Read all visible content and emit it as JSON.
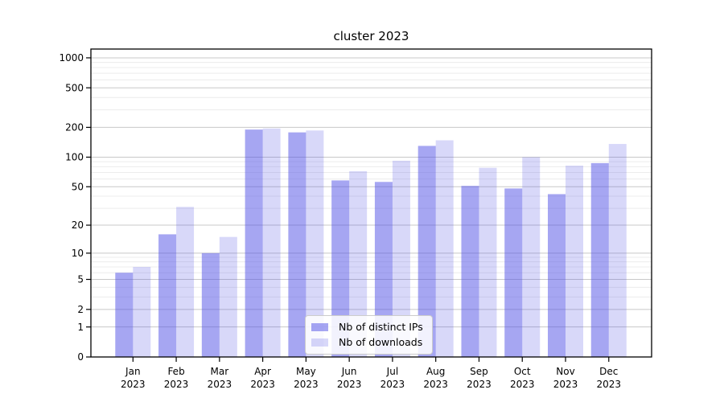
{
  "chart_data": {
    "type": "bar",
    "title": "cluster 2023",
    "xlabel": "",
    "ylabel": "",
    "categories": [
      "Jan 2023",
      "Feb 2023",
      "Mar 2023",
      "Apr 2023",
      "May 2023",
      "Jun 2023",
      "Jul 2023",
      "Aug 2023",
      "Sep 2023",
      "Oct 2023",
      "Nov 2023",
      "Dec 2023"
    ],
    "series": [
      {
        "name": "Nb of distinct IPs",
        "color": "rgba(77,77,229,0.5)",
        "values": [
          6,
          16,
          10,
          190,
          178,
          58,
          56,
          130,
          51,
          48,
          42,
          87
        ]
      },
      {
        "name": "Nb of downloads",
        "color": "rgba(77,77,229,0.22)",
        "values": [
          7,
          31,
          15,
          195,
          186,
          72,
          92,
          148,
          78,
          100,
          82,
          136
        ]
      }
    ],
    "y_axis": {
      "scale": "symlog",
      "transform": "log10(1+v)",
      "major_ticks": [
        0,
        1,
        2,
        5,
        10,
        20,
        50,
        100,
        200,
        500,
        1000
      ],
      "minor_gridlines": [
        3,
        4,
        6,
        7,
        8,
        9,
        30,
        40,
        60,
        70,
        80,
        90,
        300,
        400,
        600,
        700,
        800,
        900
      ],
      "range": [
        0,
        1250
      ]
    },
    "grid": true,
    "legend_position": "bottom-center"
  },
  "colors": {
    "background": "#ffffff",
    "axis": "#000000",
    "tick_text": "#000000",
    "major_grid": "#c8c8c8",
    "minor_grid": "#ececec",
    "legend_border": "#cccccc",
    "legend_bg": "rgba(255,255,255,0.85)"
  }
}
